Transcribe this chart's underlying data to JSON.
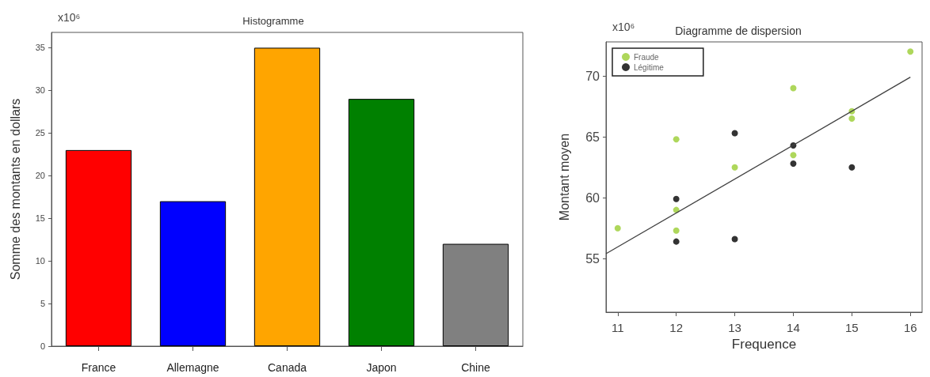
{
  "chart_data": [
    {
      "type": "bar",
      "title": "Histogramme",
      "ylabel": "Somme des montants en dollars",
      "annotations": [
        "x10⁶"
      ],
      "categories": [
        "France",
        "Allemagne",
        "Canada",
        "Japon",
        "Chine"
      ],
      "values": [
        23,
        17,
        35,
        29,
        12
      ],
      "colors": [
        "#ff0000",
        "#0000ff",
        "#ffa500",
        "#008000",
        "#808080"
      ],
      "ylim": [
        0,
        36.8
      ],
      "yticks": [
        0,
        5,
        10,
        15,
        20,
        25,
        30,
        35
      ]
    },
    {
      "type": "scatter",
      "title": "Diagramme de dispersion",
      "xlabel": "Frequence",
      "ylabel": "Montant moyen",
      "annotations": [
        "x10⁶"
      ],
      "legend": "top left",
      "series": [
        {
          "name": "Fraude",
          "color": "#9acd32",
          "marker": "circle",
          "x": [
            11,
            12,
            12,
            12,
            13,
            14,
            14,
            15,
            15,
            16
          ],
          "values": [
            57.5,
            64.8,
            59.0,
            57.3,
            62.5,
            69.0,
            63.5,
            67.1,
            66.5,
            72.0
          ]
        },
        {
          "name": "Légitime",
          "color": "#000000",
          "marker": "circle",
          "x": [
            12,
            12,
            13,
            13,
            14,
            14,
            15
          ],
          "values": [
            59.9,
            56.4,
            65.3,
            56.6,
            64.3,
            62.8,
            62.5
          ]
        },
        {
          "type": "line",
          "color": "#404040",
          "marker": "none",
          "x": [
            10.8,
            16
          ],
          "values": [
            55.4,
            69.9
          ]
        }
      ],
      "xlim": [
        10.8,
        16.2
      ],
      "xticks": [
        11,
        12,
        13,
        14,
        15,
        16
      ],
      "ylim": [
        50.6,
        72.8
      ],
      "yticks": [
        55,
        60,
        65,
        70
      ]
    }
  ]
}
